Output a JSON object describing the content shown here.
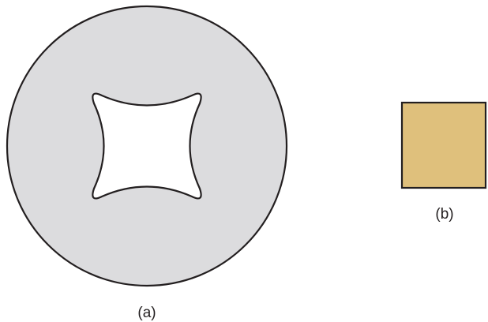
{
  "figure": {
    "panel_a": {
      "label": "(a)",
      "disc_fill": "#dcdcde",
      "hole_fill": "#ffffff",
      "outline_color": "#231f20"
    },
    "panel_b": {
      "label": "(b)",
      "square_fill": "#dfc07c",
      "outline_color": "#231f20"
    }
  }
}
